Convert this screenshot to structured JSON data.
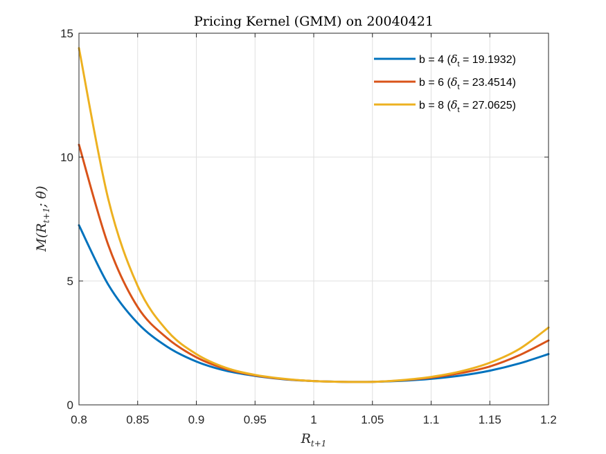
{
  "chart_data": {
    "type": "line",
    "title": "Pricing Kernel (GMM) on 20040421",
    "xlabel": {
      "base": "R",
      "sub": "t+1"
    },
    "ylabel": {
      "prefix": "M(R",
      "sub": "t+1",
      "suffix": "; θ)"
    },
    "xlim": [
      0.8,
      1.2
    ],
    "ylim": [
      0,
      15
    ],
    "xticks": [
      0.8,
      0.85,
      0.9,
      0.95,
      1.0,
      1.05,
      1.1,
      1.15,
      1.2
    ],
    "xtick_labels": [
      "0.8",
      "0.85",
      "0.9",
      "0.95",
      "1",
      "1.05",
      "1.1",
      "1.15",
      "1.2"
    ],
    "yticks": [
      0,
      5,
      10,
      15
    ],
    "ytick_labels": [
      "0",
      "5",
      "10",
      "15"
    ],
    "grid": true,
    "legend_position": "top-right",
    "series": [
      {
        "label_prefix": "b = 4 (",
        "label_symbol": "δ",
        "label_sub": "t",
        "label_suffix": " = 19.1932)",
        "color": "#0072BD",
        "x": [
          0.8,
          0.825,
          0.85,
          0.875,
          0.9,
          0.925,
          0.95,
          0.975,
          1.0,
          1.025,
          1.05,
          1.075,
          1.1,
          1.125,
          1.15,
          1.175,
          1.2
        ],
        "y": [
          7.25,
          4.85,
          3.3,
          2.35,
          1.75,
          1.38,
          1.17,
          1.03,
          0.96,
          0.93,
          0.93,
          0.97,
          1.05,
          1.18,
          1.38,
          1.67,
          2.05
        ]
      },
      {
        "label_prefix": "b = 6 (",
        "label_symbol": "δ",
        "label_sub": "t",
        "label_suffix": " = 23.4514)",
        "color": "#D95319",
        "x": [
          0.8,
          0.825,
          0.85,
          0.875,
          0.9,
          0.925,
          0.95,
          0.975,
          1.0,
          1.025,
          1.05,
          1.075,
          1.1,
          1.125,
          1.15,
          1.175,
          1.2
        ],
        "y": [
          10.5,
          6.45,
          3.95,
          2.7,
          1.92,
          1.45,
          1.19,
          1.04,
          0.96,
          0.93,
          0.93,
          0.99,
          1.1,
          1.28,
          1.55,
          2.0,
          2.6
        ]
      },
      {
        "label_prefix": "b = 8 (",
        "label_symbol": "δ",
        "label_sub": "t",
        "label_suffix": " = 27.0625)",
        "color": "#EDB120",
        "x": [
          0.8,
          0.825,
          0.85,
          0.875,
          0.9,
          0.925,
          0.95,
          0.975,
          1.0,
          1.025,
          1.05,
          1.075,
          1.1,
          1.125,
          1.15,
          1.175,
          1.2
        ],
        "y": [
          14.4,
          8.3,
          4.8,
          3.0,
          2.05,
          1.5,
          1.21,
          1.05,
          0.96,
          0.93,
          0.93,
          1.0,
          1.13,
          1.35,
          1.7,
          2.25,
          3.12
        ]
      }
    ]
  }
}
